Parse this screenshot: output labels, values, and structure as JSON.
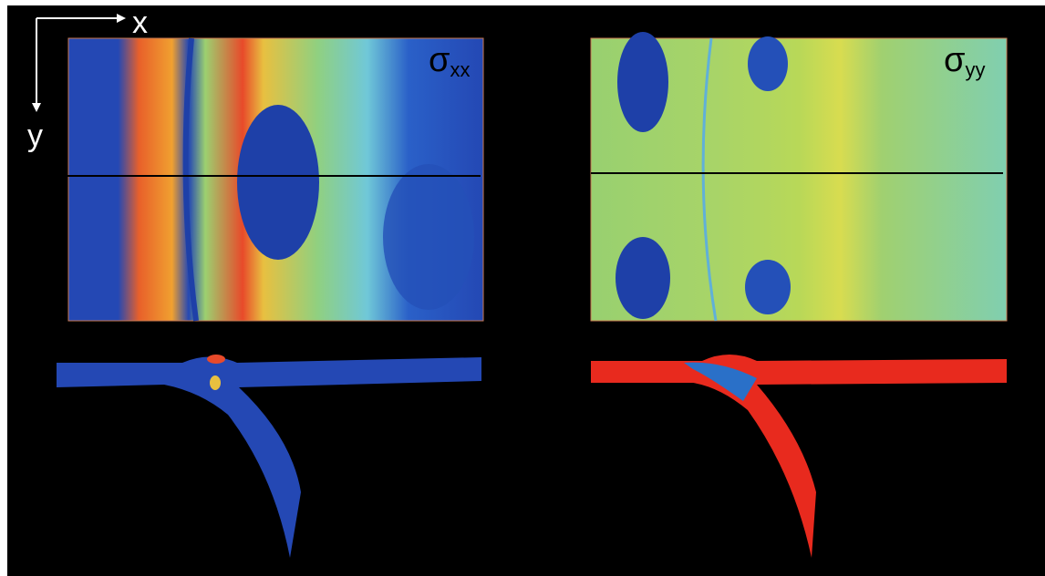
{
  "axes": {
    "x": "x",
    "y": "y"
  },
  "panels": [
    {
      "symbol": "σ",
      "subscript": "xx"
    },
    {
      "symbol": "σ",
      "subscript": "yy"
    }
  ]
}
